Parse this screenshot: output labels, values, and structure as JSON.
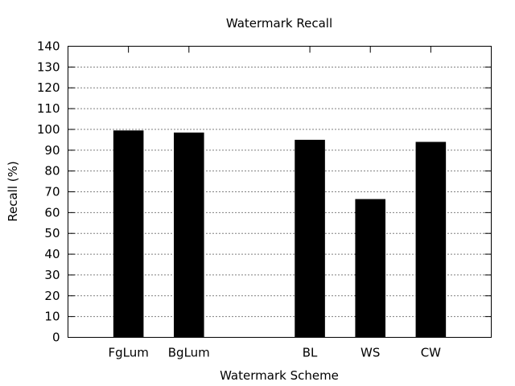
{
  "chart_data": {
    "type": "bar",
    "title": "Watermark Recall",
    "xlabel": "Watermark Scheme",
    "ylabel": "Recall (%)",
    "ylim": [
      0,
      140
    ],
    "ytick_step": 10,
    "grid": true,
    "categories": [
      "FgLum",
      "BgLum",
      "",
      "BL",
      "WS",
      "CW"
    ],
    "values": [
      99.5,
      98.5,
      null,
      95,
      66.5,
      94
    ],
    "bar_color": "#000000"
  }
}
